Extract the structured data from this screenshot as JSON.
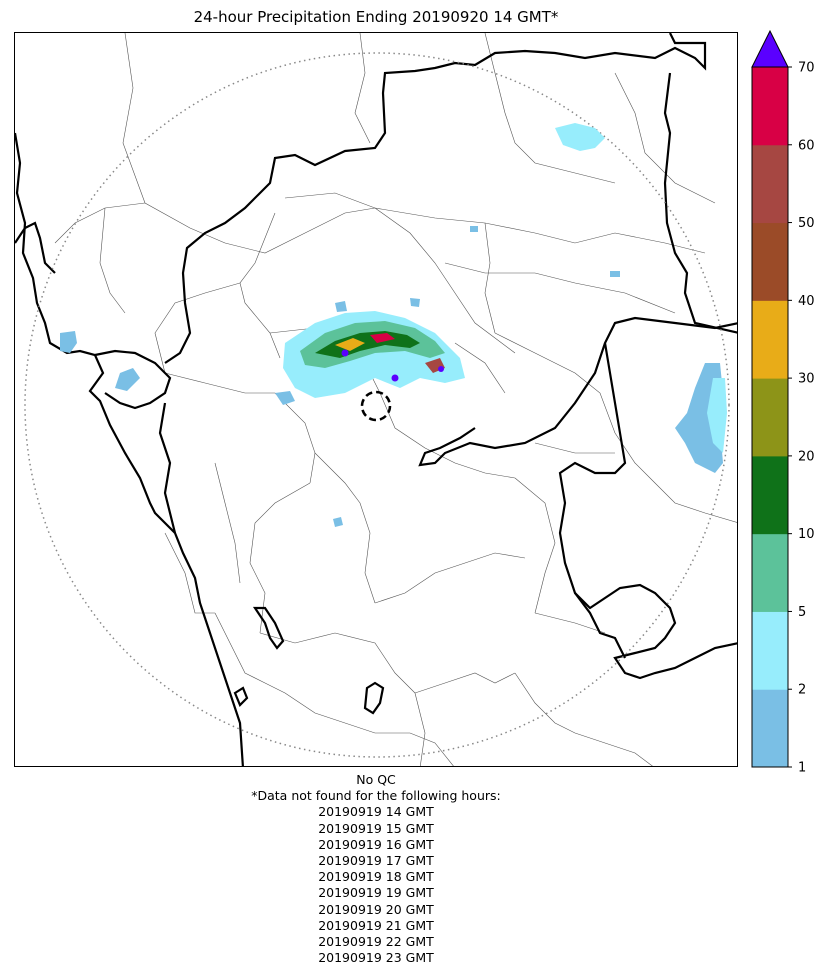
{
  "title": "24-hour Precipitation Ending 20190920 14 GMT*",
  "colorbar": {
    "tick_labels": [
      "1",
      "2",
      "5",
      "10",
      "20",
      "30",
      "40",
      "50",
      "60",
      "70"
    ],
    "bins": [
      {
        "from": 1,
        "to": 2,
        "color": "#7abfe5"
      },
      {
        "from": 2,
        "to": 5,
        "color": "#97edfc"
      },
      {
        "from": 5,
        "to": 10,
        "color": "#5cc29a"
      },
      {
        "from": 10,
        "to": 20,
        "color": "#0f7219"
      },
      {
        "from": 20,
        "to": 30,
        "color": "#8d9418"
      },
      {
        "from": 30,
        "to": 40,
        "color": "#e8ac18"
      },
      {
        "from": 40,
        "to": 50,
        "color": "#9b4b28"
      },
      {
        "from": 50,
        "to": 60,
        "color": "#a64742"
      },
      {
        "from": 60,
        "to": 70,
        "color": "#d80045"
      }
    ],
    "overflow_color": "#5a00ff"
  },
  "map": {
    "range_ring": "dotted",
    "radar_site_marker": "dashed-circle"
  },
  "notes": {
    "qc": "No QC",
    "missing_header": "*Data not found for the following hours:",
    "missing_hours": [
      "20190919 14 GMT",
      "20190919 15 GMT",
      "20190919 16 GMT",
      "20190919 17 GMT",
      "20190919 18 GMT",
      "20190919 19 GMT",
      "20190919 20 GMT",
      "20190919 21 GMT",
      "20190919 22 GMT",
      "20190919 23 GMT"
    ]
  }
}
